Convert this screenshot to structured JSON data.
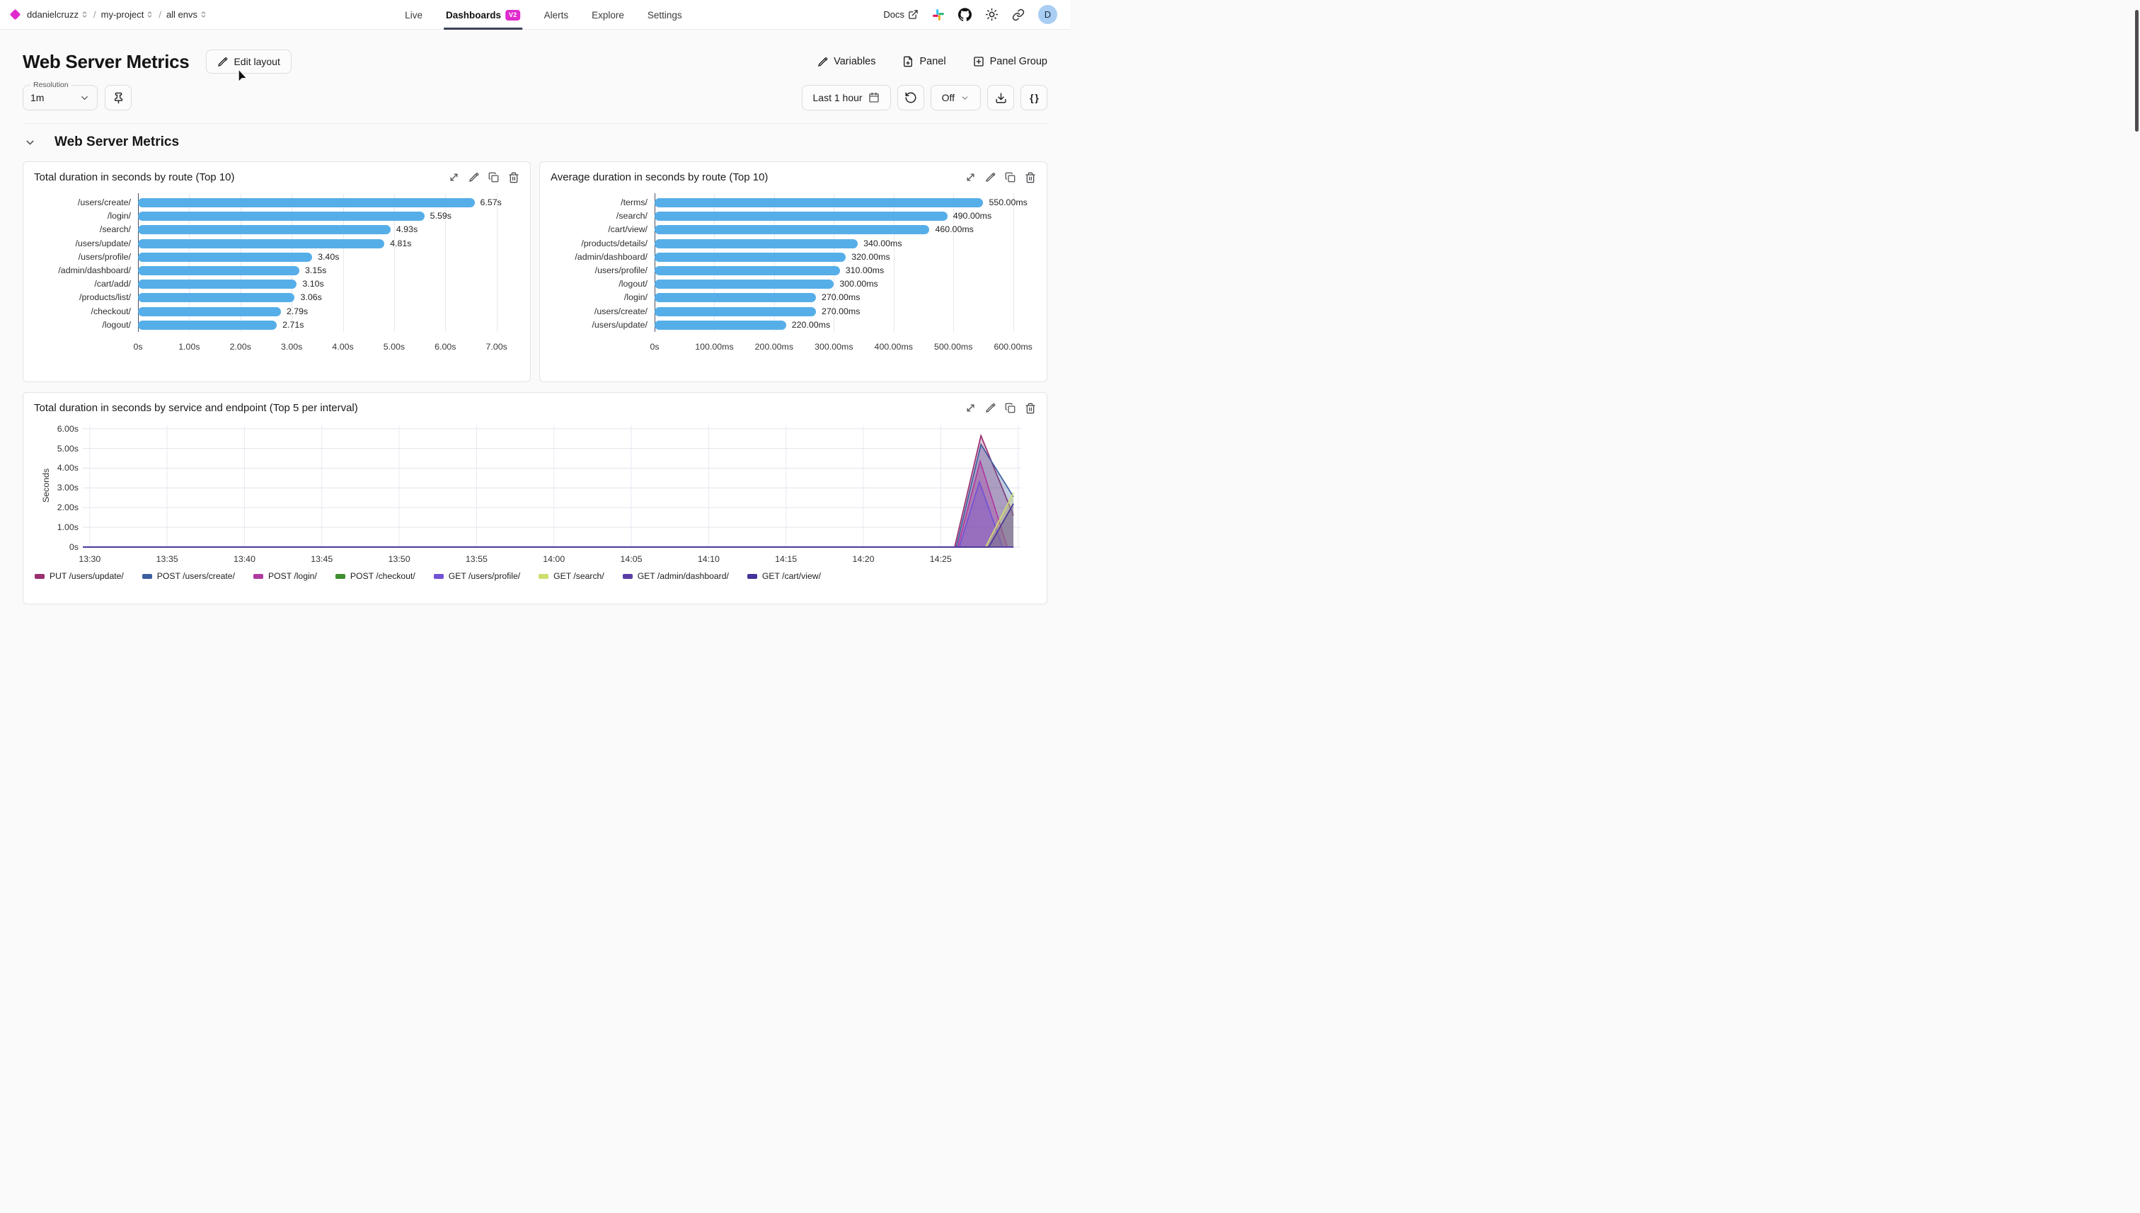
{
  "topbar": {
    "breadcrumb": {
      "separator": "/",
      "items": [
        {
          "label": "ddanielcruzz"
        },
        {
          "label": "my-project"
        },
        {
          "label": "all envs"
        }
      ]
    },
    "nav": [
      {
        "label": "Live",
        "active": false
      },
      {
        "label": "Dashboards",
        "badge": "V2",
        "active": true
      },
      {
        "label": "Alerts",
        "active": false
      },
      {
        "label": "Explore",
        "active": false
      },
      {
        "label": "Settings",
        "active": false
      }
    ],
    "right": {
      "docs_label": "Docs",
      "avatar_letter": "D"
    }
  },
  "header": {
    "title": "Web Server Metrics",
    "edit_layout_label": "Edit layout",
    "actions": [
      {
        "label": "Variables",
        "icon": "pencil-icon"
      },
      {
        "label": "Panel",
        "icon": "file-plus-icon"
      },
      {
        "label": "Panel Group",
        "icon": "square-plus-icon"
      }
    ]
  },
  "toolbar": {
    "resolution_label": "Resolution",
    "resolution_value": "1m",
    "time_range_label": "Last 1 hour",
    "refresh_mode": "Off",
    "json_label": "{ }"
  },
  "section": {
    "title": "Web Server Metrics"
  },
  "colors": {
    "accent": "#E02ACD",
    "bar": "#56AEE8",
    "nav_underline": "#3A4257",
    "avatar_bg": "#A9CDF3",
    "axis_line": "#4A4F63"
  },
  "icons": {
    "logo": "diamond",
    "breadcrumb-expand": "chevrons-up-down",
    "docs": "external-link",
    "community": "slack",
    "repo": "github",
    "theme": "sun",
    "share": "link",
    "edit": "pencil",
    "panel_add": "file-plus",
    "panel_group_add": "square-plus",
    "pin": "pin",
    "calendar": "calendar",
    "refresh": "rotate-ccw",
    "download": "download",
    "expand": "move-diagonal",
    "duplicate": "copy",
    "delete": "trash"
  },
  "chart_data": [
    {
      "type": "bar",
      "orientation": "horizontal",
      "title": "Total duration in seconds by route (Top 10)",
      "categories": [
        "/users/create/",
        "/login/",
        "/search/",
        "/users/update/",
        "/users/profile/",
        "/admin/dashboard/",
        "/cart/add/",
        "/products/list/",
        "/checkout/",
        "/logout/"
      ],
      "values": [
        6.57,
        5.59,
        4.93,
        4.81,
        3.4,
        3.15,
        3.1,
        3.06,
        2.79,
        2.71
      ],
      "value_labels": [
        "6.57s",
        "5.59s",
        "4.93s",
        "4.81s",
        "3.40s",
        "3.15s",
        "3.10s",
        "3.06s",
        "2.79s",
        "2.71s"
      ],
      "xticks": [
        {
          "v": 0,
          "label": "0s"
        },
        {
          "v": 1,
          "label": "1.00s"
        },
        {
          "v": 2,
          "label": "2.00s"
        },
        {
          "v": 3,
          "label": "3.00s"
        },
        {
          "v": 4,
          "label": "4.00s"
        },
        {
          "v": 5,
          "label": "5.00s"
        },
        {
          "v": 6,
          "label": "6.00s"
        },
        {
          "v": 7,
          "label": "7.00s"
        }
      ],
      "xlim": [
        0,
        7.35
      ],
      "bar_color": "#56AEE8",
      "grid": true
    },
    {
      "type": "bar",
      "orientation": "horizontal",
      "title": "Average duration in seconds by route (Top 10)",
      "categories": [
        "/terms/",
        "/search/",
        "/cart/view/",
        "/products/details/",
        "/admin/dashboard/",
        "/users/profile/",
        "/logout/",
        "/login/",
        "/users/create/",
        "/users/update/"
      ],
      "values": [
        550,
        490,
        460,
        340,
        320,
        310,
        300,
        270,
        270,
        220
      ],
      "value_labels": [
        "550.00ms",
        "490.00ms",
        "460.00ms",
        "340.00ms",
        "320.00ms",
        "310.00ms",
        "300.00ms",
        "270.00ms",
        "270.00ms",
        "220.00ms"
      ],
      "xticks": [
        {
          "v": 0,
          "label": "0s"
        },
        {
          "v": 100,
          "label": "100.00ms"
        },
        {
          "v": 200,
          "label": "200.00ms"
        },
        {
          "v": 300,
          "label": "300.00ms"
        },
        {
          "v": 400,
          "label": "400.00ms"
        },
        {
          "v": 500,
          "label": "500.00ms"
        },
        {
          "v": 600,
          "label": "600.00ms"
        }
      ],
      "xlim": [
        0,
        630
      ],
      "bar_color": "#56AEE8",
      "grid": true
    },
    {
      "type": "area",
      "title": "Total duration in seconds by service and endpoint (Top 5 per interval)",
      "ylabel": "Seconds",
      "yticks": [
        {
          "v": 0,
          "label": "0s"
        },
        {
          "v": 1,
          "label": "1.00s"
        },
        {
          "v": 2,
          "label": "2.00s"
        },
        {
          "v": 3,
          "label": "3.00s"
        },
        {
          "v": 4,
          "label": "4.00s"
        },
        {
          "v": 5,
          "label": "5.00s"
        },
        {
          "v": 6,
          "label": "6.00s"
        }
      ],
      "ylim": [
        0,
        6.17
      ],
      "x_unit": "minutes after 13:30",
      "xlim": [
        -0.45,
        60.2
      ],
      "xticks": [
        {
          "v": 0,
          "label": "13:30"
        },
        {
          "v": 5,
          "label": "13:35"
        },
        {
          "v": 10,
          "label": "13:40"
        },
        {
          "v": 15,
          "label": "13:45"
        },
        {
          "v": 20,
          "label": "13:50"
        },
        {
          "v": 25,
          "label": "13:55"
        },
        {
          "v": 30,
          "label": "14:00"
        },
        {
          "v": 35,
          "label": "14:05"
        },
        {
          "v": 40,
          "label": "14:10"
        },
        {
          "v": 45,
          "label": "14:15"
        },
        {
          "v": 50,
          "label": "14:20"
        },
        {
          "v": 55,
          "label": "14:25"
        },
        {
          "v": 60,
          "label": ""
        }
      ],
      "legend_position": "bottom",
      "grid": true,
      "series": [
        {
          "name": "PUT /users/update/",
          "color": "#9A3070",
          "points": [
            [
              -0.45,
              0
            ],
            [
              55.9,
              0
            ],
            [
              57.6,
              5.65
            ],
            [
              59.7,
              1.6
            ]
          ]
        },
        {
          "name": "POST /users/create/",
          "color": "#3D5FA0",
          "points": [
            [
              -0.45,
              0
            ],
            [
              56.0,
              0
            ],
            [
              57.6,
              5.2
            ],
            [
              59.7,
              2.55
            ]
          ]
        },
        {
          "name": "POST /login/",
          "color": "#AE3AA0",
          "points": [
            [
              -0.45,
              0
            ],
            [
              56.1,
              0
            ],
            [
              57.55,
              4.35
            ],
            [
              59.3,
              0
            ],
            [
              59.7,
              0
            ]
          ]
        },
        {
          "name": "POST /checkout/",
          "color": "#3F8E2F",
          "points": [
            [
              -0.45,
              0
            ],
            [
              59.7,
              0
            ]
          ]
        },
        {
          "name": "GET /users/profile/",
          "color": "#7151D4",
          "points": [
            [
              -0.45,
              0
            ],
            [
              56.2,
              0
            ],
            [
              57.5,
              3.3
            ],
            [
              59.0,
              0
            ],
            [
              59.7,
              0
            ]
          ]
        },
        {
          "name": "GET /search/",
          "color": "#CFDD6E",
          "points": [
            [
              -0.45,
              0
            ],
            [
              57.9,
              0
            ],
            [
              59.7,
              2.75
            ]
          ]
        },
        {
          "name": "GET /admin/dashboard/",
          "color": "#5B3EA6",
          "points": [
            [
              -0.45,
              0
            ],
            [
              59.7,
              0
            ]
          ]
        },
        {
          "name": "GET /cart/view/",
          "color": "#463399",
          "points": [
            [
              -0.45,
              0
            ],
            [
              58.1,
              0
            ],
            [
              59.7,
              2.2
            ]
          ]
        }
      ]
    }
  ]
}
